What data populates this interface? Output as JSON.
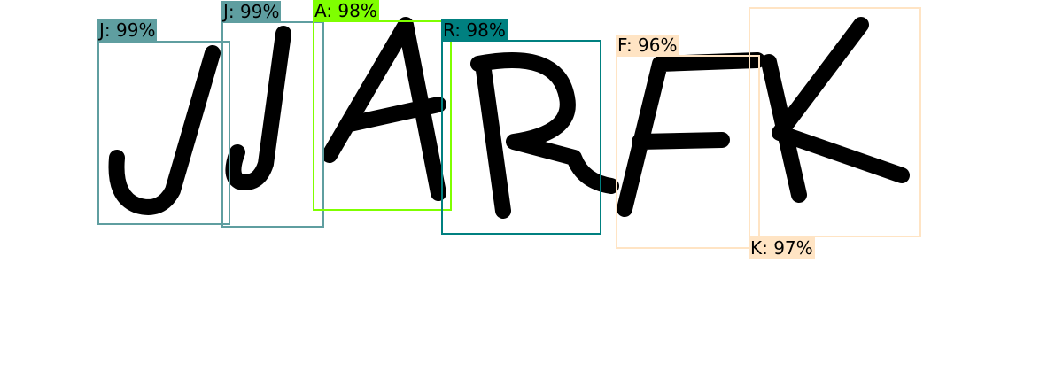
{
  "detections": [
    {
      "label": "J: 99%",
      "color": "#5f9ea0"
    },
    {
      "label": "J: 99%",
      "color": "#5f9ea0"
    },
    {
      "label": "A: 98%",
      "color": "#7fff00"
    },
    {
      "label": "R: 98%",
      "color": "#008080"
    },
    {
      "label": "F: 96%",
      "color": "#ffe4c4"
    },
    {
      "label": "K: 97%",
      "color": "#ffe4c4"
    }
  ]
}
